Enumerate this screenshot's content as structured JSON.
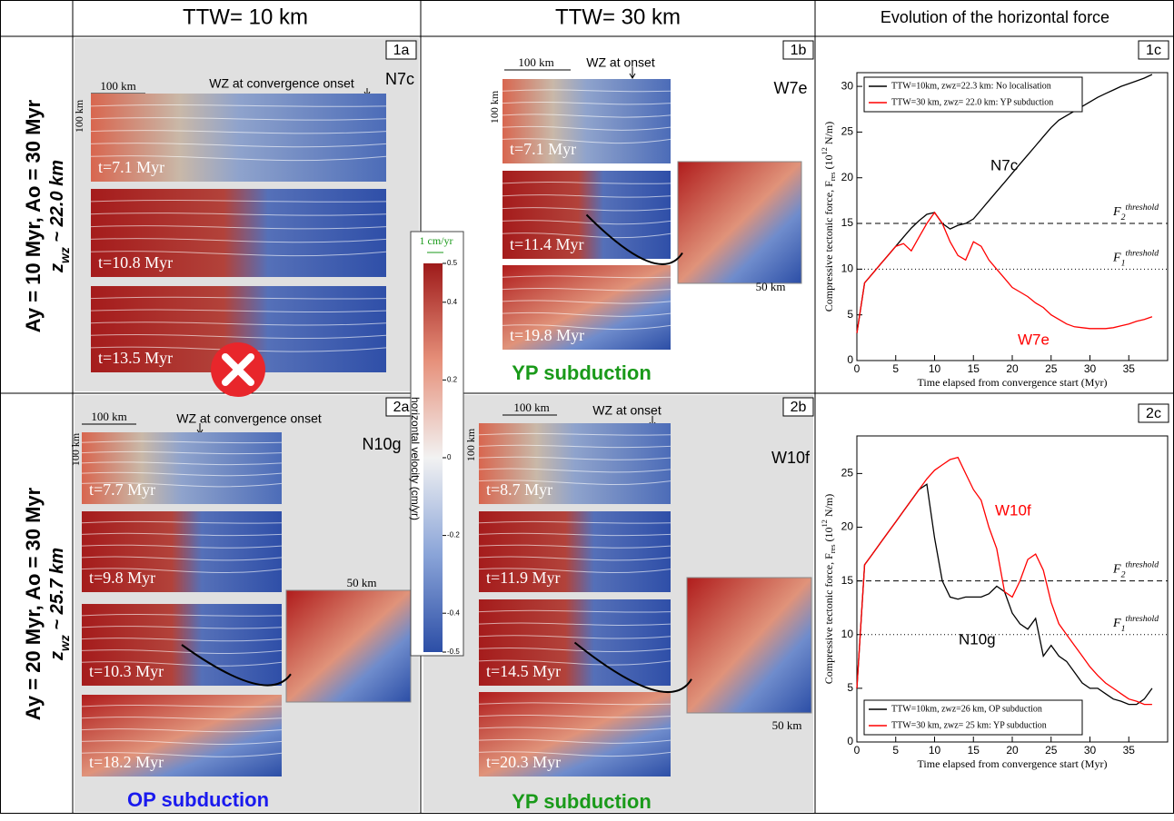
{
  "header": {
    "col1": "TTW= 10 km",
    "col2": "TTW= 30 km",
    "col3": "Evolution of the horizontal force"
  },
  "rows": [
    {
      "label": "Ay = 10 Myr, Ao = 30 Myr",
      "zwz": [
        "z",
        "wz",
        " ~ 22.0 km"
      ]
    },
    {
      "label": "Ay = 20 Myr, Ao = 30 Myr",
      "zwz": [
        "z",
        "wz",
        " ~ 25.7 km"
      ]
    }
  ],
  "panels": [
    {
      "tag": "1a",
      "model": "N7c",
      "scale": "100 km",
      "depth": "100 km",
      "wz": "WZ at convergence onset",
      "times": [
        "t=7.1 Myr",
        "t=10.8 Myr",
        "t=13.5 Myr"
      ]
    },
    {
      "tag": "1b",
      "model": "W7e",
      "scale": "100 km",
      "depth": "100 km",
      "wz": "WZ at onset",
      "times": [
        "t=7.1 Myr",
        "t=11.4 Myr",
        "t=19.8 Myr"
      ],
      "zoom": "50 km",
      "outcome": "YP subduction"
    },
    {
      "tag": "2a",
      "model": "N10g",
      "scale": "100 km",
      "depth": "100 km",
      "wz": "WZ at convergence onset",
      "times": [
        "t=7.7 Myr",
        "t=9.8 Myr",
        "t=10.3 Myr",
        "t=18.2 Myr"
      ],
      "zoom": "50 km",
      "outcome": "OP subduction"
    },
    {
      "tag": "2b",
      "model": "W10f",
      "scale": "100 km",
      "depth": "100 km",
      "wz": "WZ at onset",
      "times": [
        "t=8.7 Myr",
        "t=11.9 Myr",
        "t=14.5 Myr",
        "t=20.3 Myr"
      ],
      "zoom": "50 km",
      "outcome": "YP subduction"
    }
  ],
  "colorbar": {
    "arrow_label": "1 cm/yr",
    "ticks": [
      0.5,
      0.4,
      0.2,
      0,
      -0.2,
      -0.4,
      -0.5
    ],
    "label": "horizontal velocity (cm/yr)"
  },
  "chart_data": [
    {
      "type": "line",
      "tag": "1c",
      "x_label": "Time elapsed from convergence start (Myr)",
      "y_label": [
        "Compressive tectonic force, F",
        "res",
        " (10",
        "12",
        " N/m)"
      ],
      "x": [
        0,
        1,
        2,
        3,
        4,
        5,
        6,
        7,
        8,
        9,
        10,
        11,
        12,
        13,
        14,
        15,
        16,
        17,
        18,
        19,
        20,
        21,
        22,
        23,
        24,
        25,
        26,
        27,
        28,
        29,
        30,
        31,
        32,
        33,
        34,
        35,
        36,
        37,
        38
      ],
      "series": [
        {
          "name": "TTW=10km, zwz=22.3 km: No localisation",
          "color": "#000000",
          "values": [
            3,
            8.5,
            9.5,
            10.5,
            11.5,
            12.5,
            13.5,
            14.5,
            15.3,
            16,
            16.2,
            15,
            14.4,
            14.8,
            15,
            15.5,
            16.5,
            17.5,
            18.5,
            19.5,
            20.5,
            21.5,
            22.5,
            23.5,
            24.5,
            25.5,
            26.3,
            26.8,
            27.3,
            27.8,
            28.3,
            28.8,
            29.2,
            29.6,
            30,
            30.3,
            30.6,
            30.9,
            31.3
          ]
        },
        {
          "name": "TTW=30 km, zwz= 22.0 km: YP subduction",
          "color": "#ff0000",
          "values": [
            3,
            8.5,
            9.5,
            10.5,
            11.5,
            12.5,
            12.8,
            12,
            13.5,
            15,
            16.2,
            15,
            13,
            11.5,
            11,
            13,
            12.5,
            11,
            10,
            9,
            8,
            7.5,
            7,
            6.3,
            5.8,
            5,
            4.5,
            4,
            3.7,
            3.6,
            3.5,
            3.5,
            3.5,
            3.6,
            3.8,
            4,
            4.3,
            4.5,
            4.8
          ]
        }
      ],
      "xlim": [
        0,
        40
      ],
      "ylim": [
        0,
        31.5
      ],
      "xticks": [
        0,
        5,
        10,
        15,
        20,
        25,
        30,
        35
      ],
      "yticks": [
        0,
        5,
        10,
        15,
        20,
        25,
        30
      ],
      "legend": "upper left",
      "thresholds": [
        {
          "value": 15,
          "label": [
            "F",
            "2",
            "threshold"
          ]
        },
        {
          "value": 10,
          "label": [
            "F",
            "1",
            "threshold"
          ]
        }
      ],
      "labels": [
        "N7c",
        "W7e"
      ]
    },
    {
      "type": "line",
      "tag": "2c",
      "x_label": "Time elapsed from convergence start (Myr)",
      "y_label": [
        "Compressive tectonic force, F",
        "res",
        " (10",
        "12",
        " N/m)"
      ],
      "x": [
        0,
        1,
        2,
        3,
        4,
        5,
        6,
        7,
        8,
        9,
        10,
        11,
        12,
        13,
        14,
        15,
        16,
        17,
        18,
        19,
        20,
        21,
        22,
        23,
        24,
        25,
        26,
        27,
        28,
        29,
        30,
        31,
        32,
        33,
        34,
        35,
        36,
        37,
        38
      ],
      "series": [
        {
          "name": "TTW=10km, zwz=26 km, OP subduction",
          "color": "#000000",
          "values": [
            5,
            16.5,
            17.5,
            18.5,
            19.5,
            20.5,
            21.5,
            22.5,
            23.5,
            24,
            19,
            15,
            13.5,
            13.3,
            13.5,
            13.5,
            13.5,
            13.8,
            14.5,
            14,
            12,
            11,
            10.5,
            11.5,
            8,
            9,
            8,
            7.5,
            6.5,
            5.5,
            5,
            5,
            4.5,
            4,
            3.8,
            3.5,
            3.5,
            4,
            5
          ]
        },
        {
          "name": "TTW=30 km, zwz= 25 km: YP subduction",
          "color": "#ff0000",
          "values": [
            5,
            16.5,
            17.5,
            18.5,
            19.5,
            20.5,
            21.5,
            22.5,
            23.5,
            24.5,
            25.3,
            25.8,
            26.3,
            26.5,
            25,
            23.5,
            22.5,
            20,
            18,
            14,
            13.5,
            15,
            17,
            17.5,
            16,
            13,
            11,
            10,
            9,
            8,
            7,
            6.2,
            5.5,
            5,
            4.5,
            4,
            3.8,
            3.5,
            3.5
          ]
        }
      ],
      "xlim": [
        0,
        40
      ],
      "ylim": [
        0,
        28.5
      ],
      "xticks": [
        0,
        5,
        10,
        15,
        20,
        25,
        30,
        35
      ],
      "yticks": [
        0,
        5,
        10,
        15,
        20,
        25
      ],
      "legend": "lower left",
      "thresholds": [
        {
          "value": 15,
          "label": [
            "F",
            "2",
            "threshold"
          ]
        },
        {
          "value": 10,
          "label": [
            "F",
            "1",
            "threshold"
          ]
        }
      ],
      "labels": [
        "W10f",
        "N10g"
      ]
    }
  ]
}
